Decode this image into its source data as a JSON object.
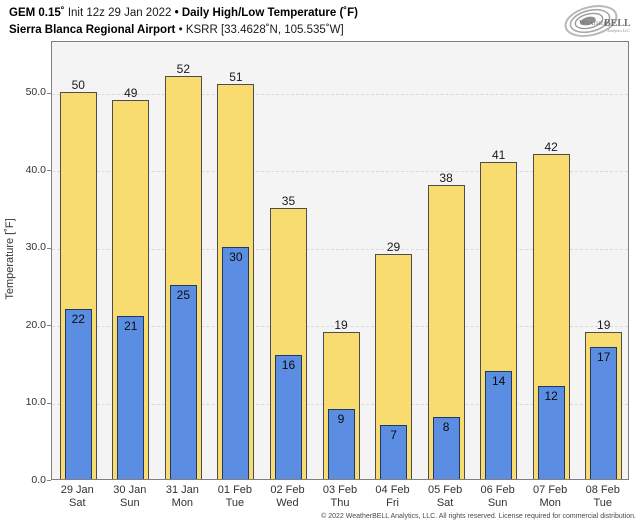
{
  "header": {
    "model": "GEM 0.15˚",
    "init": "Init 12z 29 Jan 2022",
    "bullet": "•",
    "title": "Daily High/Low Temperature (˚F)",
    "station": "Sierra Blanca Regional Airport",
    "bullet2": "•",
    "station_detail": "KSRR [33.4628˚N, 105.535˚W]"
  },
  "logo": {
    "name": "WeatherBELL",
    "text_left": "Weather",
    "text_right": "BELL",
    "subtext": "Analytics LLC"
  },
  "footer": {
    "copyright": "© 2022 WeatherBELL Analytics, LLC. All rights reserved. License required for commercial distribution."
  },
  "chart_data": {
    "type": "bar",
    "title": "Daily High/Low Temperature (°F)",
    "station": "Sierra Blanca Regional Airport (KSRR)",
    "ylabel": "Temperature [˚F]",
    "xlabel": "",
    "ylim": [
      0,
      56.7
    ],
    "yticks": [
      0,
      10,
      20,
      30,
      40,
      50
    ],
    "ytick_labels": [
      "0.0",
      "10.0",
      "20.0",
      "30.0",
      "40.0",
      "50.0"
    ],
    "grid": "horizontal-dashed",
    "legend_position": "none",
    "categories": [
      {
        "date": "29 Jan",
        "day": "Sat"
      },
      {
        "date": "30 Jan",
        "day": "Sun"
      },
      {
        "date": "31 Jan",
        "day": "Mon"
      },
      {
        "date": "01 Feb",
        "day": "Tue"
      },
      {
        "date": "02 Feb",
        "day": "Wed"
      },
      {
        "date": "03 Feb",
        "day": "Thu"
      },
      {
        "date": "04 Feb",
        "day": "Fri"
      },
      {
        "date": "05 Feb",
        "day": "Sat"
      },
      {
        "date": "06 Feb",
        "day": "Sun"
      },
      {
        "date": "07 Feb",
        "day": "Mon"
      },
      {
        "date": "08 Feb",
        "day": "Tue"
      }
    ],
    "series": [
      {
        "name": "Daily High",
        "color": "#f9dc6f",
        "border_color": "#4d4d4d",
        "values": [
          50,
          49,
          52,
          51,
          35,
          19,
          29,
          38,
          41,
          42,
          19
        ]
      },
      {
        "name": "Daily Low",
        "color": "#5b8ee3",
        "border_color": "#1d3a66",
        "values": [
          22,
          21,
          25,
          30,
          16,
          9,
          7,
          8,
          14,
          12,
          17
        ]
      }
    ]
  }
}
